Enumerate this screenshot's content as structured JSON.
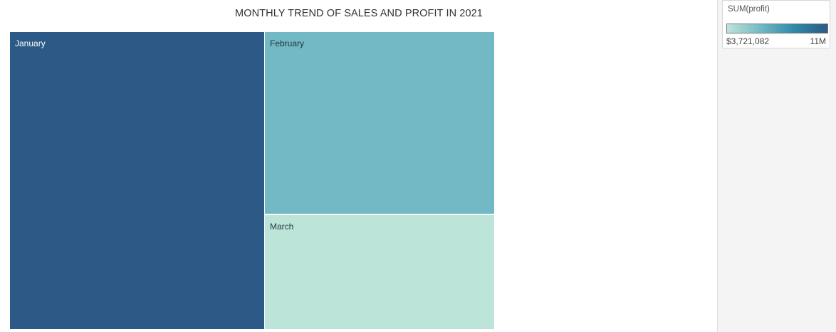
{
  "chart_data": {
    "type": "treemap",
    "title": "MONTHLY TREND OF SALES AND PROFIT IN 2021",
    "size_measure": "",
    "color_measure": "SUM(profit)",
    "tiles": [
      {
        "label": "January",
        "size": 106,
        "profit": 11000000,
        "color": "#2c5985",
        "text_color": "#ffffff"
      },
      {
        "label": "February",
        "size": 59,
        "profit": 6300000,
        "color": "#72b9c5",
        "text_color": "#1f2f3a"
      },
      {
        "label": "March",
        "size": 37,
        "profit": 3721082,
        "color": "#bde4d9",
        "text_color": "#2a3a40"
      }
    ],
    "legend": {
      "title": "SUM(profit)",
      "min_label": "$3,721,082",
      "max_label": "11M",
      "min_value": 3721082,
      "max_value": 11000000,
      "gradient": [
        "#bde4d9",
        "#72b9c5",
        "#2f8aa8",
        "#2c5985"
      ],
      "placement": "top-right"
    }
  }
}
